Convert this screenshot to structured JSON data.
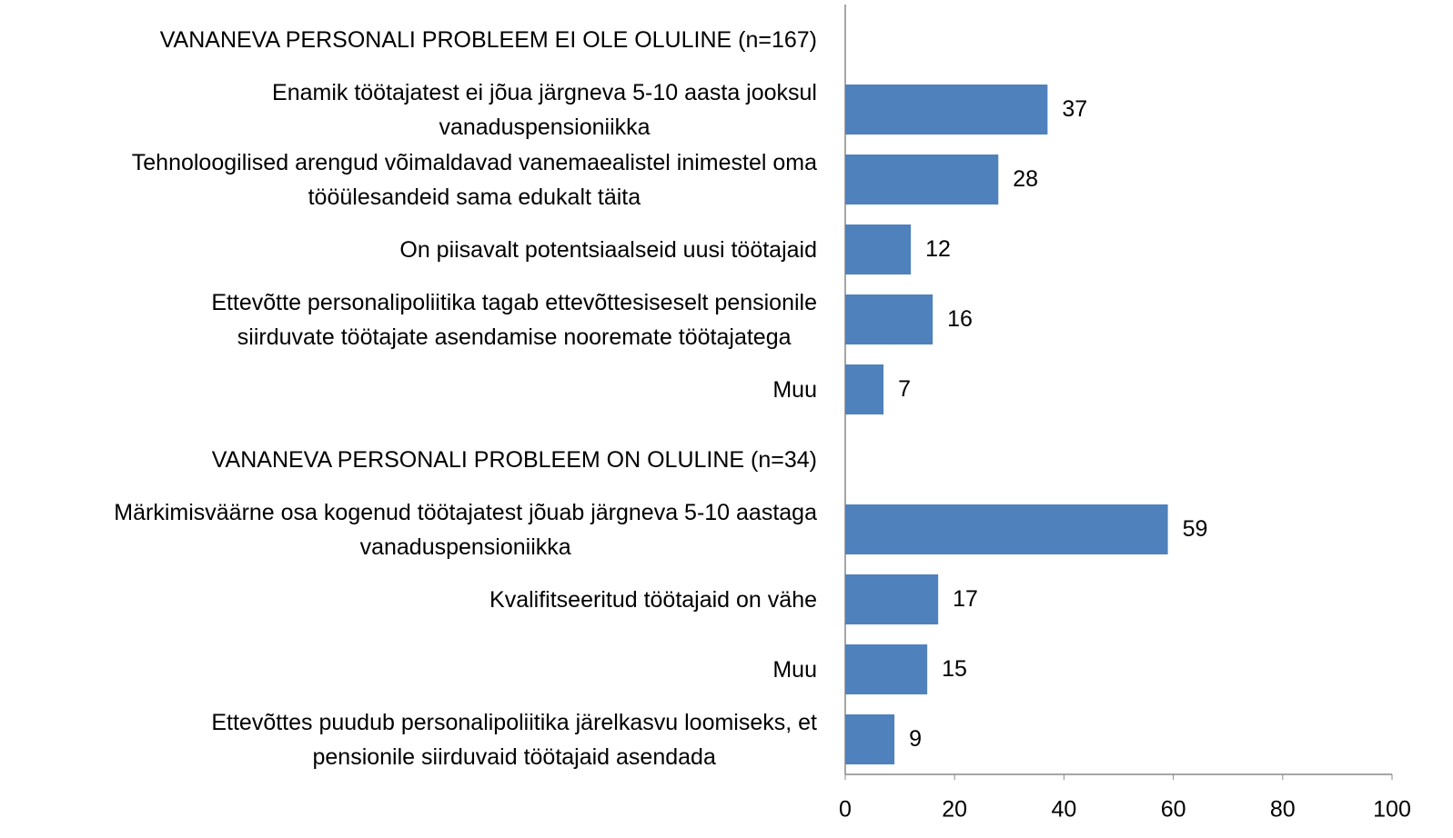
{
  "chart_data": {
    "type": "hbar",
    "categories": [
      "VANANEVA PERSONALI PROBLEEM EI OLE OLULINE (n=167)",
      "Enamik töötajatest ei jõua järgneva 5-10 aasta jooksul\nvanaduspensioniikka",
      "Tehnoloogilised arengud võimaldavad vanemaealistel inimestel oma\ntööülesandeid sama edukalt täita",
      "On piisavalt potentsiaalseid uusi töötajaid",
      "Ettevõtte personalipoliitika tagab ettevõttesiseselt pensionile\nsiirduvate töötajate asendamise nooremate töötajatega",
      "Muu",
      "VANANEVA PERSONALI PROBLEEM ON OLULINE (n=34)",
      "Märkimisväärne osa kogenud töötajatest jõuab järgneva 5-10 aastaga\nvanaduspensioniikka",
      "Kvalifitseeritud töötajaid on vähe",
      "Muu",
      "Ettevõttes puudub personalipoliitika järelkasvu loomiseks, et\npensionile siirduvaid töötajaid asendada"
    ],
    "values": [
      null,
      37,
      28,
      12,
      16,
      7,
      null,
      59,
      17,
      15,
      9
    ],
    "color": "#4f81bd",
    "xlim": [
      0,
      100
    ],
    "xticks": [
      0,
      20,
      40,
      60,
      80,
      100
    ]
  }
}
